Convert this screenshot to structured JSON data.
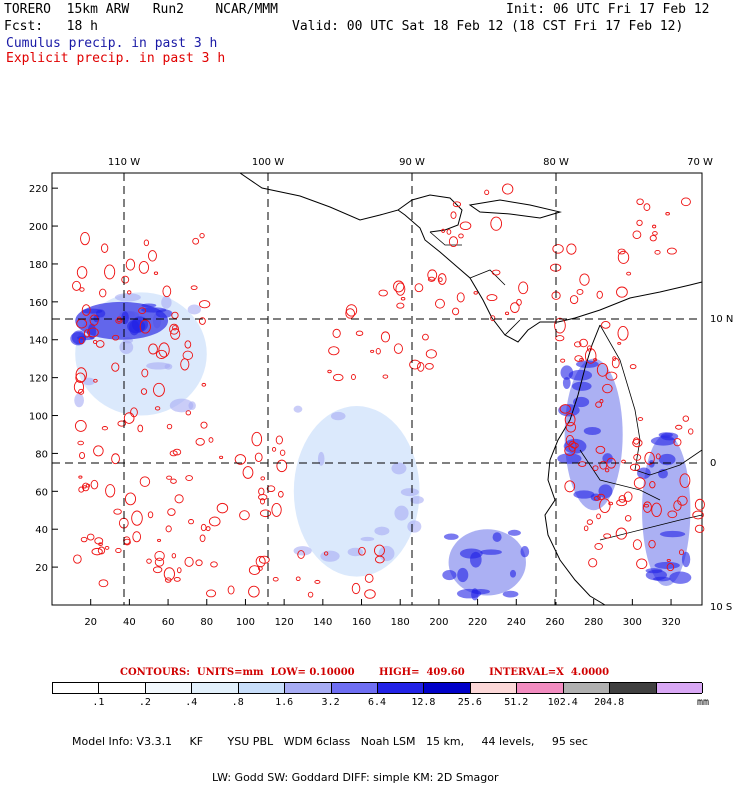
{
  "header": {
    "model": "TORERO  15km ARW   Run2    NCAR/MMM",
    "init": "Init: 06 UTC Fri 17 Feb 12",
    "fcst": "Fcst:   18 h",
    "valid": "Valid: 00 UTC Sat 18 Feb 12 (18 CST Fri 17 Feb 12)",
    "cumulus": "Cumulus precip. in past 3 h",
    "explicit": "Explicit precip. in past 3 h"
  },
  "colors": {
    "cumulus": "#1a1aa6",
    "explicit": "#e00000",
    "contour": "#ee1111",
    "grid": "#000000"
  },
  "chart_data": {
    "type": "heatmap",
    "title": "Cumulus precip. in past 3 h / Explicit precip. in past 3 h",
    "x_grid_ticks": [
      20,
      40,
      60,
      80,
      100,
      120,
      140,
      160,
      180,
      200,
      220,
      240,
      260,
      280,
      300,
      320
    ],
    "y_grid_ticks": [
      20,
      40,
      60,
      80,
      100,
      120,
      140,
      160,
      180,
      200,
      220
    ],
    "x_range": [
      0,
      336
    ],
    "y_range": [
      0,
      228
    ],
    "longitude_labels": [
      "110 W",
      "100 W",
      "90 W",
      "80 W",
      "70 W"
    ],
    "longitude_positions": [
      38,
      113,
      186,
      260,
      331
    ],
    "latitude_labels": [
      "10 N",
      "0",
      "10 S"
    ],
    "latitude_positions": [
      150,
      76,
      2
    ],
    "contours": {
      "units": "mm",
      "low": 0.1,
      "high": 409.6,
      "interval": "X 4.0000",
      "text": "CONTOURS:  UNITS=mm  LOW= 0.10000       HIGH=  409.60       INTERVAL=X  4.0000"
    },
    "colorbar": {
      "labels": [
        ".1",
        ".2",
        ".4",
        ".8",
        "1.6",
        "3.2",
        "6.4",
        "12.8",
        "25.6",
        "51.2",
        "102.4",
        "204.8"
      ],
      "colors": [
        "#ffffff",
        "#ffffff",
        "#f2f8fd",
        "#e2f0fb",
        "#c8defa",
        "#a7acf4",
        "#6e6ef2",
        "#2222e6",
        "#0000c8",
        "#fcd8d8",
        "#f28cc0",
        "#b0b0b0",
        "#404040",
        "#d9a8f5"
      ],
      "units": "mm"
    },
    "precip_regions": [
      {
        "kind": "cumulus",
        "level": "light",
        "x": [
          12,
          80
        ],
        "y": [
          100,
          165
        ]
      },
      {
        "kind": "cumulus",
        "level": "heavy",
        "x": [
          12,
          60
        ],
        "y": [
          140,
          160
        ]
      },
      {
        "kind": "cumulus",
        "level": "light",
        "x": [
          125,
          190
        ],
        "y": [
          15,
          105
        ]
      },
      {
        "kind": "cumulus",
        "level": "moderate",
        "x": [
          205,
          245
        ],
        "y": [
          5,
          40
        ]
      },
      {
        "kind": "cumulus",
        "level": "moderate",
        "x": [
          265,
          295
        ],
        "y": [
          50,
          130
        ]
      },
      {
        "kind": "cumulus",
        "level": "moderate",
        "x": [
          305,
          330
        ],
        "y": [
          10,
          90
        ]
      }
    ]
  },
  "footer": {
    "model_info_1": "Model Info: V3.3.1     KF       YSU PBL   WDM 6class   Noah LSM   15 km,     44 levels,     95 sec",
    "model_info_2": "LW: Godd SW: Goddard DIFF: simple KM: 2D Smagor",
    "colorbar_units": "mm"
  }
}
